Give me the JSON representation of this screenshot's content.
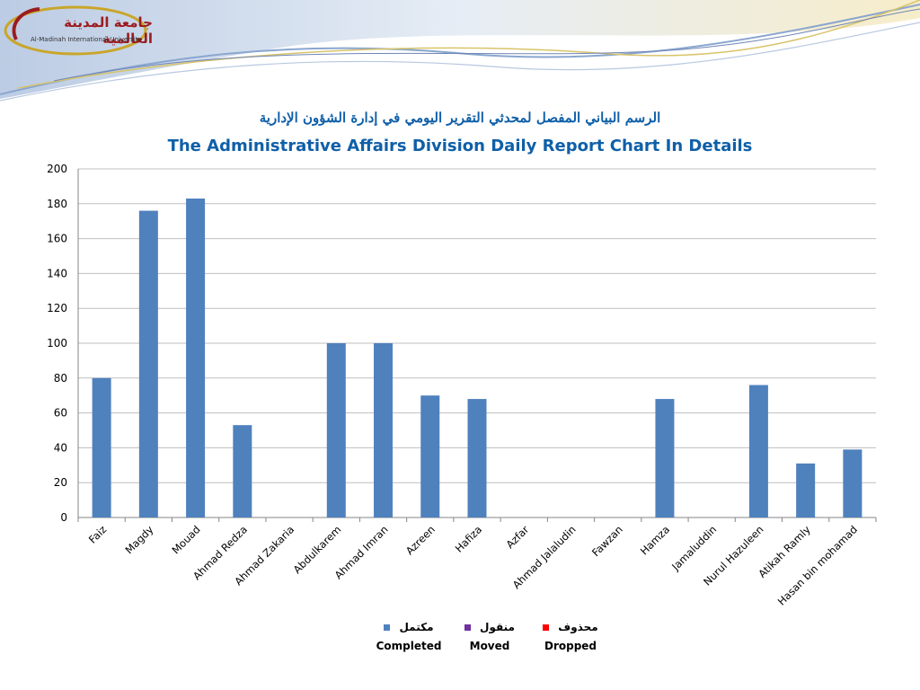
{
  "header": {
    "logo": {
      "name_arabic": "جامعة المدينة العالمية",
      "name_english": "Al-Madinah International University"
    },
    "title_arabic": "الرسم البياني المفصل لمحدثي التقرير اليومي في إدارة الشؤون الإدارية",
    "title_english": "The Administrative Affairs Division Daily Report Chart In Details"
  },
  "colors": {
    "completed": "#4f81bd",
    "moved": "#7030a0",
    "dropped": "#ff0000",
    "title": "#0f5fa8",
    "grid": "#bfbfbf"
  },
  "legend": [
    {
      "label_ar": "مكتمل",
      "label_en": "Completed",
      "color": "#4f81bd"
    },
    {
      "label_ar": "منقول",
      "label_en": "Moved",
      "color": "#7030a0"
    },
    {
      "label_ar": "محذوف",
      "label_en": "Dropped",
      "color": "#ff0000"
    }
  ],
  "chart_data": {
    "type": "bar",
    "categories": [
      "Faiz",
      "Magdy",
      "Mouad",
      "Ahmad Redza",
      "Ahmad Zakaria",
      "Abdulkarem",
      "Ahmad Imran",
      "Azreen",
      "Hafiza",
      "Azfar",
      "Ahmad Jalaludin",
      "Fawzan",
      "Hamza",
      "Jamaluddin",
      "Nurul Hazuleen",
      "Atikah Ramly",
      "Hasan bin mohamad"
    ],
    "series": [
      {
        "name": "Completed",
        "values": [
          80,
          176,
          183,
          53,
          0,
          100,
          100,
          70,
          68,
          0,
          0,
          0,
          68,
          0,
          76,
          31,
          39
        ]
      },
      {
        "name": "Moved",
        "values": [
          0,
          0,
          0,
          0,
          0,
          0,
          0,
          0,
          0,
          0,
          0,
          0,
          0,
          0,
          0,
          0,
          0
        ]
      },
      {
        "name": "Dropped",
        "values": [
          0,
          0,
          0,
          0,
          0,
          0,
          0,
          0,
          0,
          0,
          0,
          0,
          0,
          0,
          0,
          0,
          0
        ]
      }
    ],
    "yticks": [
      0,
      20,
      40,
      60,
      80,
      100,
      120,
      140,
      160,
      180,
      200
    ],
    "ylim": [
      0,
      200
    ],
    "grid": true,
    "legend_position": "bottom"
  }
}
